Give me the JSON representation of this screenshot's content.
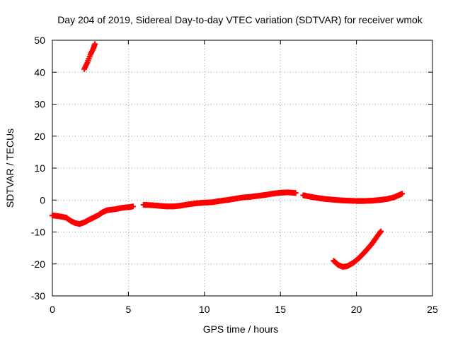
{
  "chart_data": {
    "type": "scatter",
    "title": "Day 204 of 2019, Sidereal Day-to-day VTEC variation (SDTVAR) for receiver wmok",
    "xlabel": "GPS time / hours",
    "ylabel": "SDTVAR / TECUs",
    "xlim": [
      0,
      25
    ],
    "ylim": [
      -30,
      50
    ],
    "xticks": [
      0,
      5,
      10,
      15,
      20,
      25
    ],
    "yticks": [
      -30,
      -20,
      -10,
      0,
      10,
      20,
      30,
      40,
      50
    ],
    "grid": true,
    "marker": "plus",
    "color": "#ff0000",
    "series": [
      {
        "name": "wmok",
        "segments": [
          {
            "x": [
              2.1,
              2.3,
              2.5,
              2.7,
              2.8
            ],
            "y": [
              41,
              43,
              45.5,
              47.5,
              48.8
            ]
          },
          {
            "x": [
              0.0,
              0.3,
              0.6,
              0.9,
              1.2,
              1.5,
              1.8,
              2.1,
              2.4,
              2.7,
              3.0,
              3.3,
              3.6,
              3.9,
              4.2,
              4.5,
              4.8,
              5.1,
              5.3
            ],
            "y": [
              -4.8,
              -5.0,
              -5.2,
              -5.5,
              -6.5,
              -7.2,
              -7.5,
              -7.0,
              -6.2,
              -5.5,
              -4.8,
              -3.8,
              -3.2,
              -3.0,
              -2.8,
              -2.5,
              -2.3,
              -2.2,
              -2.0
            ]
          },
          {
            "x": [
              6.0,
              6.5,
              7.0,
              7.5,
              8.0,
              8.5,
              9.0,
              9.5,
              10.0,
              10.5,
              11.0,
              11.5,
              12.0,
              12.5,
              13.0,
              13.5,
              14.0,
              14.5,
              15.0,
              15.5,
              16.0
            ],
            "y": [
              -1.5,
              -1.6,
              -1.8,
              -2.0,
              -2.0,
              -1.7,
              -1.3,
              -1.0,
              -0.8,
              -0.7,
              -0.3,
              0.0,
              0.4,
              0.8,
              1.0,
              1.3,
              1.6,
              2.0,
              2.3,
              2.4,
              2.2
            ]
          },
          {
            "x": [
              16.5,
              17.0,
              17.5,
              18.0,
              18.5,
              19.0,
              19.5,
              20.0,
              20.5,
              21.0,
              21.5,
              22.0,
              22.5,
              23.0
            ],
            "y": [
              1.5,
              1.0,
              0.6,
              0.3,
              0.1,
              -0.1,
              -0.2,
              -0.3,
              -0.3,
              -0.2,
              0.0,
              0.3,
              0.9,
              2.0
            ]
          },
          {
            "x": [
              18.5,
              18.8,
              19.1,
              19.4,
              19.8,
              20.2,
              20.6,
              21.0,
              21.3,
              21.6
            ],
            "y": [
              -19.0,
              -20.3,
              -20.9,
              -20.7,
              -19.6,
              -18.0,
              -16.0,
              -13.8,
              -11.8,
              -9.8
            ]
          }
        ]
      }
    ]
  }
}
